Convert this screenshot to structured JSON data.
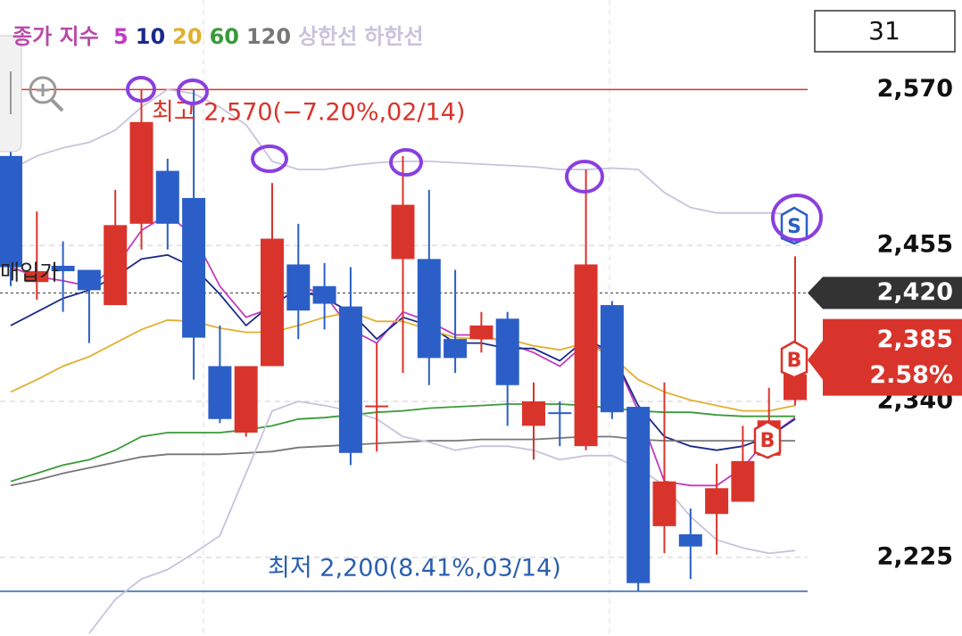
{
  "chart_data": {
    "type": "candlestick",
    "legend_label": "종가 지수",
    "legend_label_color": "#b94aa8",
    "period": 31,
    "up_color": "#d9342b",
    "down_color": "#2b5fc7",
    "ylim": [
      2167,
      2636
    ],
    "yticks": [
      {
        "value": 2570,
        "label": "2,570"
      },
      {
        "value": 2455,
        "label": "2,455"
      },
      {
        "value": 2340,
        "label": "2,340"
      },
      {
        "value": 2225,
        "label": "2,225"
      }
    ],
    "grid": true,
    "candles": {
      "open": [
        2521,
        2428,
        2440,
        2437,
        2411,
        2471,
        2510,
        2490,
        2366,
        2317,
        2366,
        2441,
        2425,
        2410,
        2336,
        2445,
        2445,
        2386,
        2386,
        2401,
        2322,
        2332,
        2307,
        2411,
        2336,
        2248,
        2242,
        2257,
        2266,
        2300,
        2341
      ],
      "high": [
        2530,
        2480,
        2458,
        2437,
        2496,
        2570,
        2519,
        2570,
        2396,
        2366,
        2501,
        2471,
        2442,
        2439,
        2383,
        2521,
        2496,
        2437,
        2406,
        2406,
        2354,
        2340,
        2511,
        2414,
        2336,
        2354,
        2261,
        2294,
        2322,
        2350,
        2447
      ],
      "low": [
        2425,
        2415,
        2406,
        2383,
        2411,
        2452,
        2452,
        2356,
        2324,
        2314,
        2366,
        2386,
        2393,
        2293,
        2303,
        2361,
        2352,
        2361,
        2376,
        2322,
        2297,
        2307,
        2304,
        2327,
        2200,
        2228,
        2209,
        2227,
        2266,
        2298,
        2337
      ],
      "close": [
        2439,
        2436,
        2436,
        2422,
        2470,
        2546,
        2471,
        2387,
        2327,
        2366,
        2460,
        2407,
        2412,
        2302,
        2337,
        2485,
        2372,
        2372,
        2396,
        2352,
        2340,
        2331,
        2441,
        2332,
        2206,
        2281,
        2233,
        2276,
        2296,
        2326,
        2360
      ]
    },
    "series": [
      {
        "name": "5",
        "color": "#c23bbf",
        "values": [
          2439,
          2432,
          2429,
          2425,
          2439,
          2466,
          2478,
          2462,
          2425,
          2402,
          2409,
          2425,
          2419,
          2393,
          2383,
          2406,
          2399,
          2389,
          2389,
          2383,
          2376,
          2366,
          2383,
          2376,
          2333,
          2281,
          2278,
          2278,
          2291,
          2314,
          2328
        ]
      },
      {
        "name": "10",
        "color": "#1a2a8a",
        "values": [
          2396,
          2406,
          2416,
          2422,
          2432,
          2445,
          2448,
          2439,
          2419,
          2396,
          2412,
          2422,
          2416,
          2406,
          2386,
          2402,
          2396,
          2383,
          2383,
          2379,
          2379,
          2370,
          2386,
          2376,
          2337,
          2314,
          2307,
          2304,
          2307,
          2314,
          2327
        ]
      },
      {
        "name": "20",
        "color": "#e0b030",
        "values": [
          2347,
          2356,
          2366,
          2373,
          2383,
          2393,
          2400,
          2399,
          2394,
          2391,
          2391,
          2396,
          2402,
          2406,
          2399,
          2399,
          2393,
          2387,
          2386,
          2386,
          2381,
          2378,
          2383,
          2373,
          2356,
          2347,
          2341,
          2337,
          2333,
          2333,
          2337
        ]
      },
      {
        "name": "60",
        "color": "#3a9a3a",
        "values": [
          2281,
          2287,
          2293,
          2297,
          2304,
          2314,
          2317,
          2317,
          2317,
          2319,
          2322,
          2327,
          2328,
          2330,
          2332,
          2333,
          2335,
          2336,
          2337,
          2338,
          2338,
          2338,
          2337,
          2335,
          2333,
          2332,
          2332,
          2330,
          2329,
          2329,
          2329
        ]
      },
      {
        "name": "120",
        "color": "#777777",
        "values": [
          2278,
          2282,
          2287,
          2291,
          2295,
          2299,
          2301,
          2301,
          2301,
          2302,
          2303,
          2306,
          2307,
          2308,
          2309,
          2310,
          2311,
          2311,
          2312,
          2312,
          2312,
          2313,
          2314,
          2314,
          2312,
          2311,
          2311,
          2311,
          2311,
          2311,
          2311
        ]
      },
      {
        "name": "상한선",
        "color": "#c9c2dd",
        "values": [
          2511,
          2521,
          2527,
          2531,
          2540,
          2557,
          2570,
          2567,
          2557,
          2544,
          2517,
          2511,
          2511,
          2514,
          2516,
          2517,
          2517,
          2516,
          2515,
          2514,
          2513,
          2511,
          2511,
          2512,
          2511,
          2494,
          2483,
          2479,
          2479,
          2479,
          2478
        ]
      },
      {
        "name": "하한선",
        "color": "#c9c2dd",
        "values": [
          null,
          null,
          null,
          2169,
          2194,
          2209,
          2216,
          2228,
          2241,
          2287,
          2333,
          2340,
          2337,
          2333,
          2327,
          2314,
          2310,
          2304,
          2307,
          2307,
          2304,
          2297,
          2300,
          2300,
          2291,
          2278,
          2255,
          2238,
          2232,
          2228,
          2230
        ]
      }
    ],
    "annotations": [
      {
        "text": "최고 2,570(−7.20%,02/14)",
        "value": 2570,
        "color": "#d9342b"
      },
      {
        "text": "최저 2,200(8.41%,03/14)",
        "value": 2200,
        "color": "#2b5fae"
      }
    ],
    "purchase_price": {
      "text": "매입가",
      "value": 2420,
      "label": "2,420"
    },
    "last_price": {
      "value": 2385,
      "label": "2,385"
    },
    "change_pct": {
      "value": 2.58,
      "label": "2.58%"
    },
    "markers": [
      {
        "label": "S"
      },
      {
        "label": "B"
      },
      {
        "label": "B"
      }
    ]
  }
}
